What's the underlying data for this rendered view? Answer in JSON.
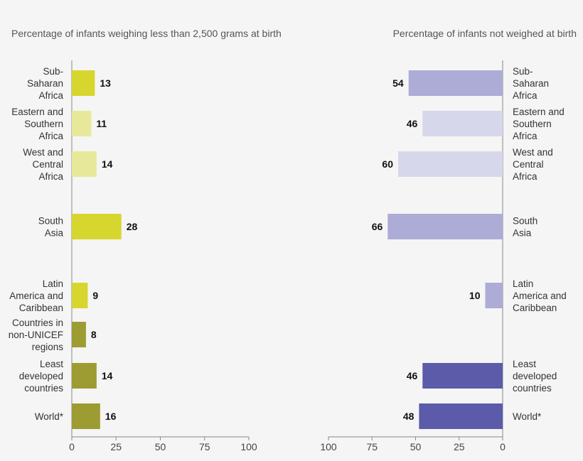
{
  "chart_data": [
    {
      "type": "bar",
      "orientation": "horizontal",
      "title": "Percentage of infants weighing less than 2,500 grams at birth",
      "categories": [
        "Sub-Saharan Africa",
        "Eastern and Southern Africa",
        "West and Central Africa",
        "South Asia",
        "Latin America and Caribbean",
        "Countries in non-UNICEF regions",
        "Least developed countries",
        "World*"
      ],
      "category_lines": [
        [
          "Sub-",
          "Saharan",
          "Africa"
        ],
        [
          "Eastern and",
          "Southern",
          "Africa"
        ],
        [
          "West and",
          "Central",
          "Africa"
        ],
        [
          "South",
          "Asia"
        ],
        [
          "Latin",
          "America and",
          "Caribbean"
        ],
        [
          "Countries in",
          "non-UNICEF",
          "regions"
        ],
        [
          "Least",
          "developed",
          "countries"
        ],
        [
          "World*"
        ]
      ],
      "values": [
        13,
        11,
        14,
        28,
        9,
        8,
        14,
        16
      ],
      "colors": [
        "#d6d62e",
        "#e8e89a",
        "#e8e89a",
        "#d6d62e",
        "#d6d62e",
        "#9c9c33",
        "#9c9c33",
        "#9c9c33"
      ],
      "xlim": [
        0,
        100
      ],
      "ticks": [
        0,
        25,
        50,
        75,
        100
      ],
      "grid": false
    },
    {
      "type": "bar",
      "orientation": "horizontal",
      "x_reversed": true,
      "title": "Percentage of infants not weighed at birth",
      "categories": [
        "Sub-Saharan Africa",
        "Eastern and Southern Africa",
        "West and Central Africa",
        "South Asia",
        "Latin America and Caribbean",
        "Least developed countries",
        "World*"
      ],
      "category_lines": [
        [
          "Sub-",
          "Saharan",
          "Africa"
        ],
        [
          "Eastern and",
          "Southern",
          "Africa"
        ],
        [
          "West and",
          "Central",
          "Africa"
        ],
        [
          "South",
          "Asia"
        ],
        [
          "Latin",
          "America and",
          "Caribbean"
        ],
        [
          "Least",
          "developed",
          "countries"
        ],
        [
          "World*"
        ]
      ],
      "values": [
        54,
        46,
        60,
        66,
        10,
        46,
        48
      ],
      "colors": [
        "#acacd6",
        "#d7d7eb",
        "#d7d7eb",
        "#acacd6",
        "#acacd6",
        "#5b5ba9",
        "#5b5ba9"
      ],
      "xlim": [
        100,
        0
      ],
      "ticks": [
        100,
        75,
        50,
        25,
        0
      ],
      "grid": false
    }
  ]
}
